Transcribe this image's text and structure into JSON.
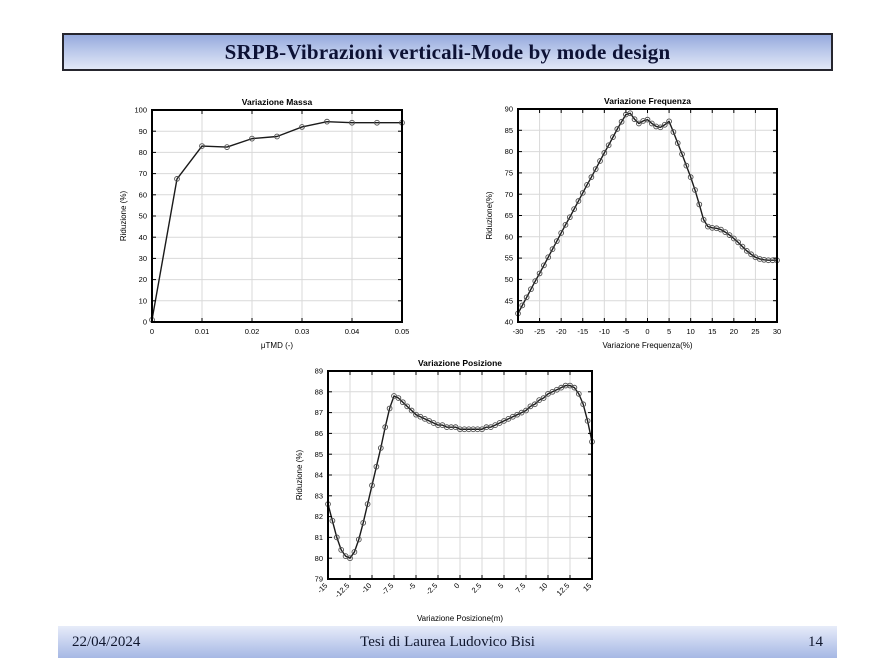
{
  "slide": {
    "title": "SRPB-Vibrazioni verticali-Mode by mode design"
  },
  "footer": {
    "date": "22/04/2024",
    "center": "Tesi di Laurea Ludovico Bisi",
    "page": "14"
  },
  "colors": {
    "banner_top": "#96aadd",
    "banner_bottom": "#e2e8f7",
    "banner_border": "#26262e",
    "footer_top": "#e7ecf9",
    "footer_bottom": "#a6b8e4",
    "text_dark": "#0d1235",
    "chart_line": "#1a1a1a",
    "chart_marker_edge": "#4d4d4d",
    "chart_grid": "#d9d9d9"
  },
  "chart_data": [
    {
      "type": "line",
      "title": "Variazione Massa",
      "xlabel": "μTMD (-)",
      "ylabel": "Riduzione (%)",
      "xlim": [
        0,
        0.05
      ],
      "ylim": [
        0,
        100
      ],
      "xticks": [
        0,
        0.01,
        0.02,
        0.03,
        0.04,
        0.05
      ],
      "xtick_labels": [
        "0",
        "0.01",
        "0.02",
        "0.03",
        "0.04",
        "0.05"
      ],
      "yticks": [
        0,
        10,
        20,
        30,
        40,
        50,
        60,
        70,
        80,
        90,
        100
      ],
      "rotate_xticks": false,
      "grid": true,
      "legend": null,
      "x": [
        0,
        0.005,
        0.01,
        0.015,
        0.02,
        0.025,
        0.03,
        0.035,
        0.04,
        0.045,
        0.05
      ],
      "y": [
        1,
        67.5,
        83,
        82.5,
        86.5,
        87.5,
        92,
        94.5,
        94,
        94,
        94
      ]
    },
    {
      "type": "line",
      "title": "Variazione Frequenza",
      "xlabel": "Variazione Frequenza(%)",
      "ylabel": "Riduzione(%)",
      "xlim": [
        -30,
        30
      ],
      "ylim": [
        40,
        90
      ],
      "xticks": [
        -30,
        -25,
        -20,
        -15,
        -10,
        -5,
        0,
        5,
        10,
        15,
        20,
        25,
        30
      ],
      "xtick_labels": [
        "-30",
        "-25",
        "-20",
        "-15",
        "-10",
        "-5",
        "0",
        "5",
        "10",
        "15",
        "20",
        "25",
        "30"
      ],
      "yticks": [
        40,
        45,
        50,
        55,
        60,
        65,
        70,
        75,
        80,
        85,
        90
      ],
      "rotate_xticks": false,
      "grid": true,
      "legend": null,
      "x": [
        -30,
        -29,
        -28,
        -27,
        -26,
        -25,
        -24,
        -23,
        -22,
        -21,
        -20,
        -19,
        -18,
        -17,
        -16,
        -15,
        -14,
        -13,
        -12,
        -11,
        -10,
        -9,
        -8,
        -7,
        -6,
        -5,
        -4,
        -3,
        -2,
        -1,
        0,
        1,
        2,
        3,
        4,
        5,
        6,
        7,
        8,
        9,
        10,
        11,
        12,
        13,
        14,
        15,
        16,
        17,
        18,
        19,
        20,
        21,
        22,
        23,
        24,
        25,
        26,
        27,
        28,
        29,
        30
      ],
      "y": [
        42,
        43.9,
        45.8,
        47.7,
        49.6,
        51.4,
        53.3,
        55.2,
        57.1,
        59,
        60.9,
        62.8,
        64.6,
        66.5,
        68.4,
        70.3,
        72.2,
        74,
        75.9,
        77.8,
        79.7,
        81.5,
        83.4,
        85.3,
        87,
        88.7,
        89,
        87.6,
        86.6,
        87.2,
        87.5,
        86.6,
        85.9,
        85.7,
        86.3,
        87.1,
        84.6,
        82,
        79.4,
        76.7,
        74,
        71,
        67.6,
        64,
        62.4,
        62.1,
        62,
        61.7,
        61.1,
        60.4,
        59.6,
        58.7,
        57.7,
        56.7,
        55.9,
        55.2,
        54.8,
        54.6,
        54.5,
        54.5,
        54.5
      ]
    },
    {
      "type": "line",
      "title": "Variazione Posizione",
      "xlabel": "Variazione Posizione(m)",
      "ylabel": "Riduzione (%)",
      "xlim": [
        -15,
        15
      ],
      "ylim": [
        79,
        89
      ],
      "xticks": [
        -15,
        -12.5,
        -10,
        -7.5,
        -5,
        -2.5,
        0,
        2.5,
        5,
        7.5,
        10,
        12.5,
        15
      ],
      "xtick_labels": [
        "-15",
        "-12.5",
        "-10",
        "-7.5",
        "-5",
        "-2.5",
        "0",
        "2.5",
        "5",
        "7.5",
        "10",
        "12.5",
        "15"
      ],
      "yticks": [
        79,
        80,
        81,
        82,
        83,
        84,
        85,
        86,
        87,
        88,
        89
      ],
      "rotate_xticks": true,
      "grid": true,
      "legend": null,
      "x": [
        -15,
        -14.5,
        -14,
        -13.5,
        -13,
        -12.5,
        -12,
        -11.5,
        -11,
        -10.5,
        -10,
        -9.5,
        -9,
        -8.5,
        -8,
        -7.5,
        -7,
        -6.5,
        -6,
        -5.5,
        -5,
        -4.5,
        -4,
        -3.5,
        -3,
        -2.5,
        -2,
        -1.5,
        -1,
        -0.5,
        0,
        0.5,
        1,
        1.5,
        2,
        2.5,
        3,
        3.5,
        4,
        4.5,
        5,
        5.5,
        6,
        6.5,
        7,
        7.5,
        8,
        8.5,
        9,
        9.5,
        10,
        10.5,
        11,
        11.5,
        12,
        12.5,
        13,
        13.5,
        14,
        14.5,
        15
      ],
      "y": [
        82.6,
        81.8,
        81,
        80.4,
        80.1,
        80,
        80.3,
        80.9,
        81.7,
        82.6,
        83.5,
        84.4,
        85.3,
        86.3,
        87.2,
        87.8,
        87.7,
        87.5,
        87.3,
        87.1,
        86.9,
        86.8,
        86.7,
        86.6,
        86.5,
        86.4,
        86.4,
        86.3,
        86.3,
        86.3,
        86.2,
        86.2,
        86.2,
        86.2,
        86.2,
        86.2,
        86.3,
        86.3,
        86.4,
        86.5,
        86.6,
        86.7,
        86.8,
        86.9,
        87,
        87.1,
        87.3,
        87.4,
        87.6,
        87.7,
        87.9,
        88,
        88.1,
        88.2,
        88.3,
        88.3,
        88.2,
        87.9,
        87.4,
        86.6,
        85.6
      ]
    }
  ]
}
